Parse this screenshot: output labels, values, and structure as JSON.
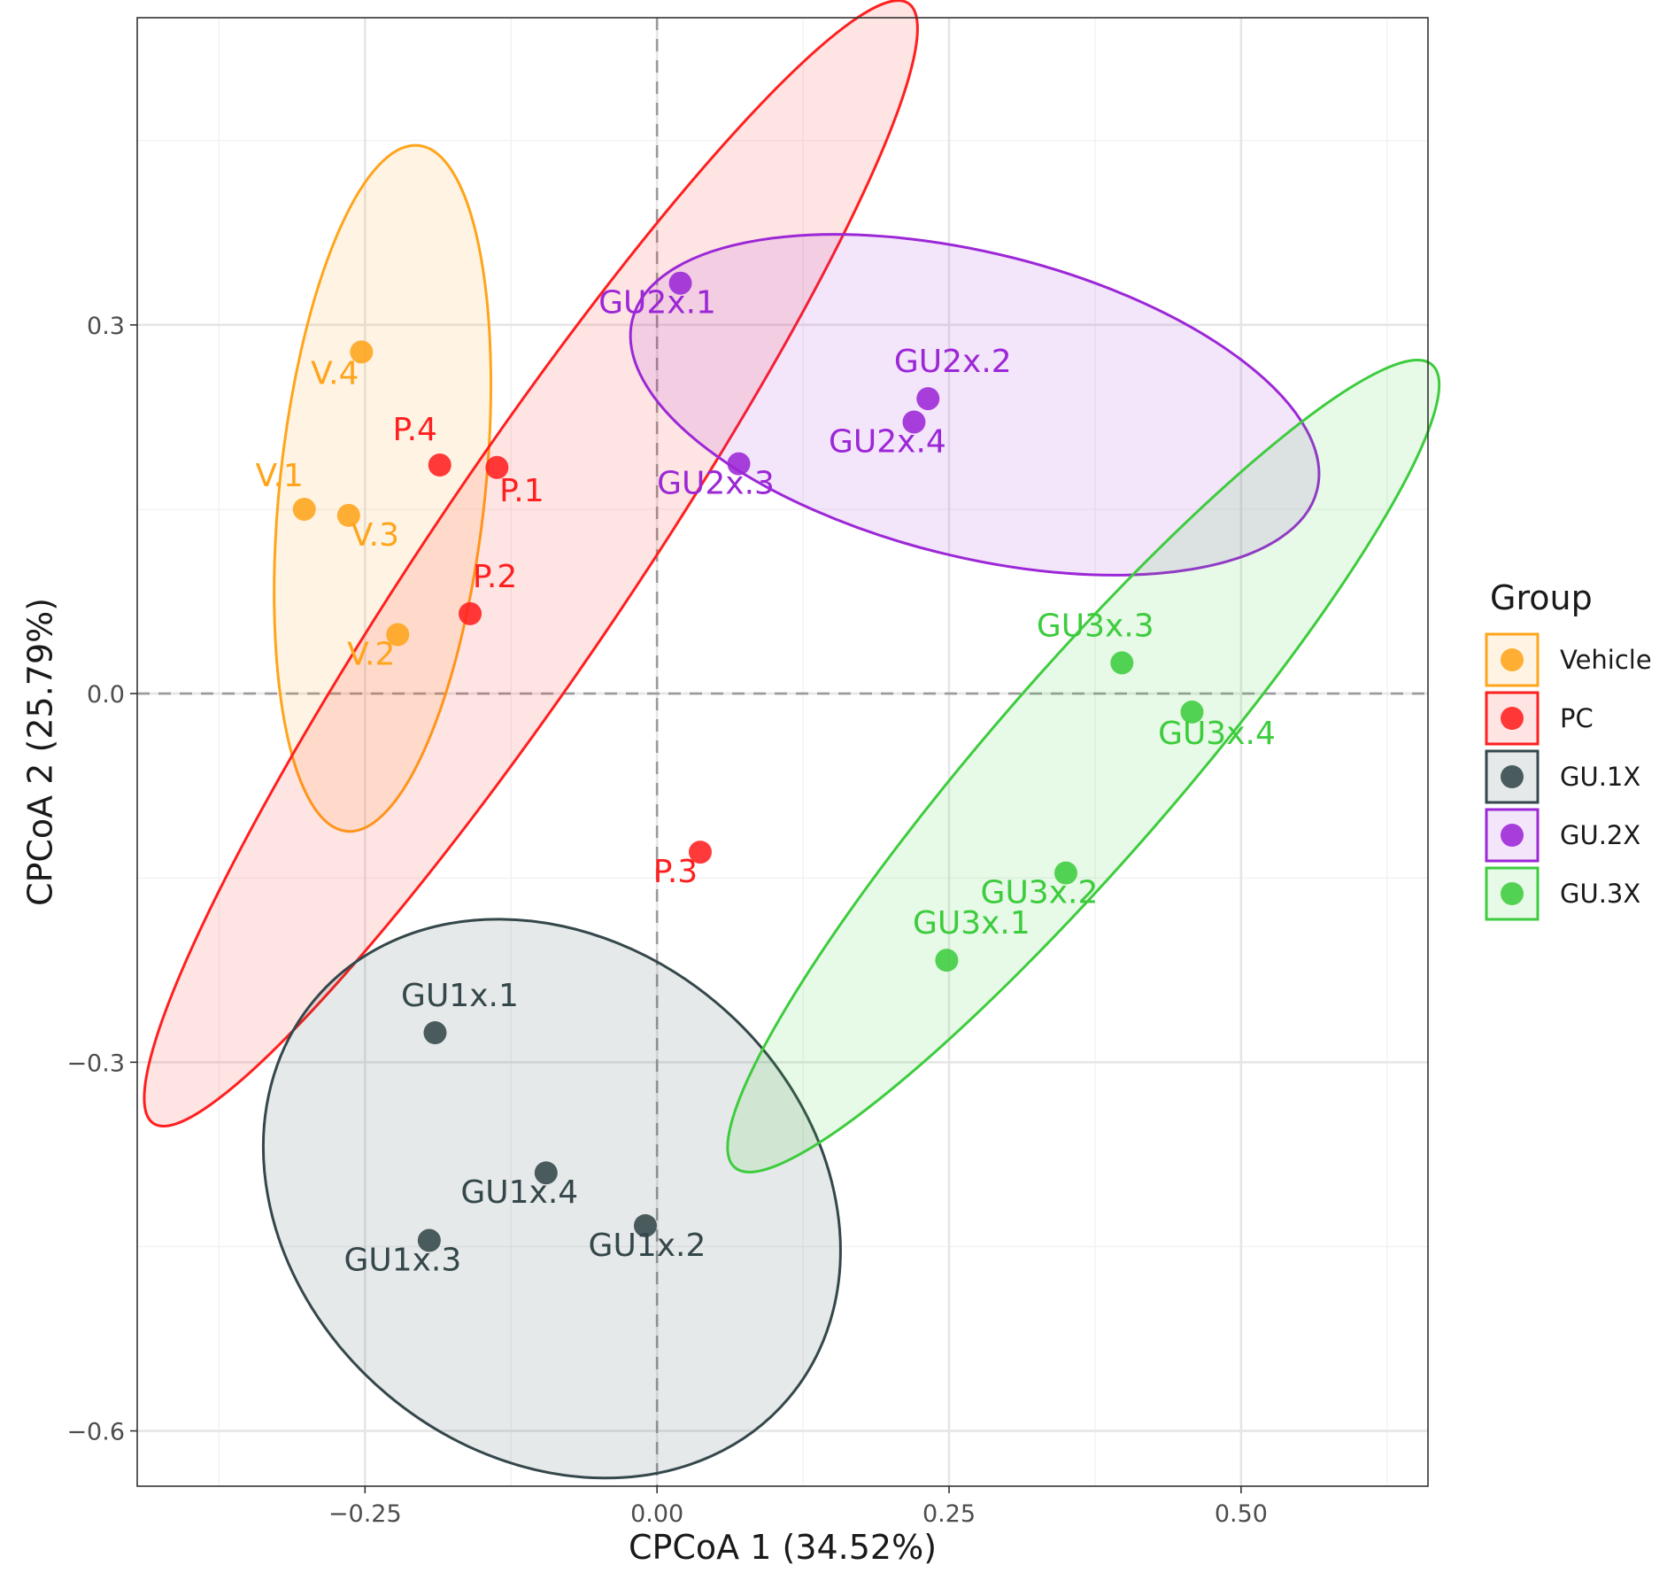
{
  "chart_data": {
    "type": "scatter",
    "xlabel": "CPCoA 1 (34.52%)",
    "ylabel": "CPCoA 2 (25.79%)",
    "xlim": [
      -0.445,
      0.66
    ],
    "ylim": [
      -0.645,
      0.55
    ],
    "x_ticks": [
      -0.25,
      0.0,
      0.25,
      0.5
    ],
    "x_tick_labels": [
      "−0.25",
      "0.00",
      "0.25",
      "0.50"
    ],
    "y_ticks": [
      0.3,
      0.0,
      -0.3,
      -0.6
    ],
    "y_tick_labels": [
      "0.3",
      "0.0",
      "−0.3",
      "−0.6"
    ],
    "grid": true,
    "reference_lines": {
      "x": 0,
      "y": 0
    },
    "legend": {
      "title": "Group",
      "position": "right"
    },
    "groups": [
      {
        "name": "Vehicle",
        "color": "#FFA41B",
        "ellipse": {
          "cx": -0.235,
          "cy": 0.167,
          "rx": 0.295,
          "ry": 0.088,
          "angle": 84
        },
        "points": [
          {
            "label": "V.1",
            "x": -0.302,
            "y": 0.15
          },
          {
            "label": "V.2",
            "x": -0.222,
            "y": 0.048
          },
          {
            "label": "V.3",
            "x": -0.264,
            "y": 0.145
          },
          {
            "label": "V.4",
            "x": -0.253,
            "y": 0.278
          }
        ]
      },
      {
        "name": "PC",
        "color": "#FF1F1F",
        "ellipse": {
          "cx": -0.108,
          "cy": 0.106,
          "rx": 0.578,
          "ry": 0.086,
          "angle": 56
        },
        "points": [
          {
            "label": "P.1",
            "x": -0.137,
            "y": 0.184
          },
          {
            "label": "P.2",
            "x": -0.16,
            "y": 0.065
          },
          {
            "label": "P.3",
            "x": 0.037,
            "y": -0.129
          },
          {
            "label": "P.4",
            "x": -0.186,
            "y": 0.186
          }
        ]
      },
      {
        "name": "GU.1X",
        "color": "#34474A",
        "ellipse": {
          "cx": -0.09,
          "cy": -0.411,
          "rx": 0.265,
          "ry": 0.219,
          "angle": -40
        },
        "points": [
          {
            "label": "GU1x.1",
            "x": -0.19,
            "y": -0.276
          },
          {
            "label": "GU1x.2",
            "x": -0.01,
            "y": -0.433
          },
          {
            "label": "GU1x.3",
            "x": -0.195,
            "y": -0.445
          },
          {
            "label": "GU1x.4",
            "x": -0.095,
            "y": -0.39
          }
        ]
      },
      {
        "name": "GU.2X",
        "color": "#9C27D6",
        "ellipse": {
          "cx": 0.272,
          "cy": 0.235,
          "rx": 0.302,
          "ry": 0.13,
          "angle": -14
        },
        "points": [
          {
            "label": "GU2x.1",
            "x": 0.02,
            "y": 0.334
          },
          {
            "label": "GU2x.2",
            "x": 0.232,
            "y": 0.24
          },
          {
            "label": "GU2x.3",
            "x": 0.07,
            "y": 0.187
          },
          {
            "label": "GU2x.4",
            "x": 0.22,
            "y": 0.221
          }
        ]
      },
      {
        "name": "GU.3X",
        "color": "#3DCC3D",
        "ellipse": {
          "cx": 0.365,
          "cy": -0.059,
          "rx": 0.455,
          "ry": 0.08,
          "angle": 49
        },
        "points": [
          {
            "label": "GU3x.1",
            "x": 0.248,
            "y": -0.217
          },
          {
            "label": "GU3x.2",
            "x": 0.35,
            "y": -0.146
          },
          {
            "label": "GU3x.3",
            "x": 0.398,
            "y": 0.025
          },
          {
            "label": "GU3x.4",
            "x": 0.458,
            "y": -0.015
          }
        ]
      }
    ]
  }
}
